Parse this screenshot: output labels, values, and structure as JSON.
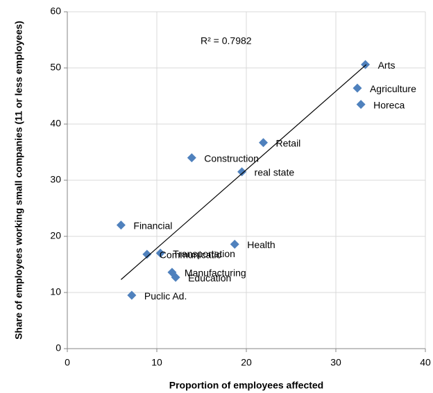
{
  "chart_data": {
    "type": "scatter",
    "x_label": "Proportion of employees affected",
    "y_label": "Share of employees working small companies (11 or less employees)",
    "annotation": "R² = 0.7982",
    "color": "#4f81bd",
    "xlim": [
      0,
      40
    ],
    "xticks": [
      0,
      10,
      20,
      30,
      40
    ],
    "ylim": [
      0,
      60
    ],
    "yticks": [
      0,
      10,
      20,
      30,
      40,
      50,
      60
    ],
    "grid": true,
    "labels": [
      "Arts",
      "Agriculture",
      "Horeca",
      "Retail",
      "Construction",
      "real state",
      "Financial",
      "Health",
      "Transportation",
      "Communicatio",
      "Manufacturing",
      "Education",
      "Puclic Ad."
    ],
    "x": [
      33.3,
      32.4,
      32.8,
      21.9,
      13.9,
      19.5,
      6.0,
      18.7,
      10.4,
      8.9,
      11.7,
      12.1,
      7.2
    ],
    "y": [
      50.6,
      46.4,
      43.5,
      36.7,
      34.0,
      31.5,
      22.0,
      18.6,
      17.0,
      16.8,
      13.6,
      12.7,
      9.5
    ],
    "trendline": {
      "x": [
        6.0,
        33.4
      ],
      "y": [
        12.3,
        50.6
      ]
    }
  }
}
